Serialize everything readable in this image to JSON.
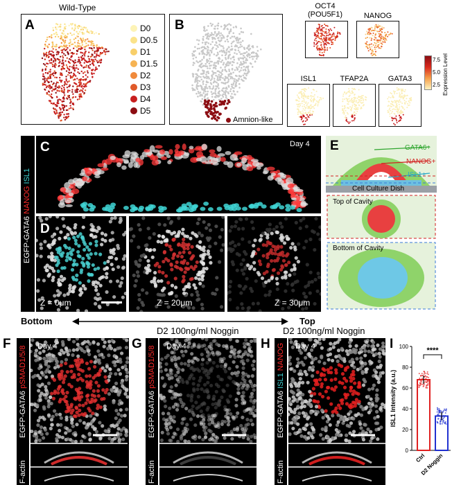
{
  "panel_a": {
    "letter": "A",
    "title": "Wild-Type",
    "legend": [
      {
        "label": "D0",
        "color": "#fdf3b6"
      },
      {
        "label": "D0.5",
        "color": "#fbe38a"
      },
      {
        "label": "D1",
        "color": "#f8cf6a"
      },
      {
        "label": "D1.5",
        "color": "#f6b352"
      },
      {
        "label": "D2",
        "color": "#f08a3c"
      },
      {
        "label": "D3",
        "color": "#e05a2a"
      },
      {
        "label": "D4",
        "color": "#c81e1e"
      },
      {
        "label": "D5",
        "color": "#8c0d12"
      }
    ]
  },
  "panel_b": {
    "letter": "B",
    "legend_label": "Amnion-like",
    "legend_color": "#8c0d12",
    "genes": [
      "OCT4\n(POU5F1)",
      "NANOG",
      "ISL1",
      "TFAP2A",
      "GATA3"
    ],
    "colorbar": {
      "label": "Expression Level",
      "ticks": [
        "7.5",
        "5.0",
        "2.5"
      ]
    }
  },
  "panel_c": {
    "letter": "C",
    "day": "Day 4",
    "side_label": "EGFP-GATA6 NANOG ISL1",
    "side_parts": [
      {
        "text": "EGFP-GATA6 ",
        "color": "#ffffff"
      },
      {
        "text": "NANOG ",
        "color": "#ff2a2a"
      },
      {
        "text": "ISL1",
        "color": "#3fd5d5"
      }
    ]
  },
  "panel_d": {
    "letter": "D",
    "z_labels": [
      "Z = 0μm",
      "Z = 20μm",
      "Z = 30μm"
    ]
  },
  "panel_e": {
    "letter": "E",
    "labels": {
      "gata6": "GATA6+",
      "nanog": "NANOG+",
      "isl1": "ISL1+",
      "dish": "Cell Culture Dish",
      "top": "Top of Cavity",
      "bottom": "Bottom of Cavity"
    }
  },
  "axis": {
    "bottom": "Bottom",
    "top": "Top"
  },
  "panel_f": {
    "letter": "F",
    "day": "Day 4",
    "side_a": "EGFP-GATA6 ",
    "side_b": "pSMAD1/5/8",
    "factin": "F-actin"
  },
  "panel_g": {
    "letter": "G",
    "title": "D2 100ng/ml Noggin",
    "day": "Day 4",
    "side_a": "EGFP-GATA6 ",
    "side_b": "pSMAD1/5/8",
    "factin": "F-actin"
  },
  "panel_h": {
    "letter": "H",
    "title": "D2 100ng/ml Noggin",
    "day": "Day 4",
    "side_a": "EGFP-GATA6 ",
    "side_b": "ISL1 ",
    "side_c": "NANOG",
    "factin": "F-actin"
  },
  "chart_data": {
    "type": "bar",
    "letter": "I",
    "categories": [
      "Ctrl",
      "D2 Noggin"
    ],
    "values": [
      68,
      33
    ],
    "errors": [
      4,
      4
    ],
    "colors": [
      "#e02020",
      "#2030d0"
    ],
    "ylabel": "ISL1 Intensity (a.u.)",
    "ylim": [
      0,
      100
    ],
    "yticks": [
      0,
      20,
      40,
      60,
      80,
      100
    ],
    "significance": "****"
  }
}
